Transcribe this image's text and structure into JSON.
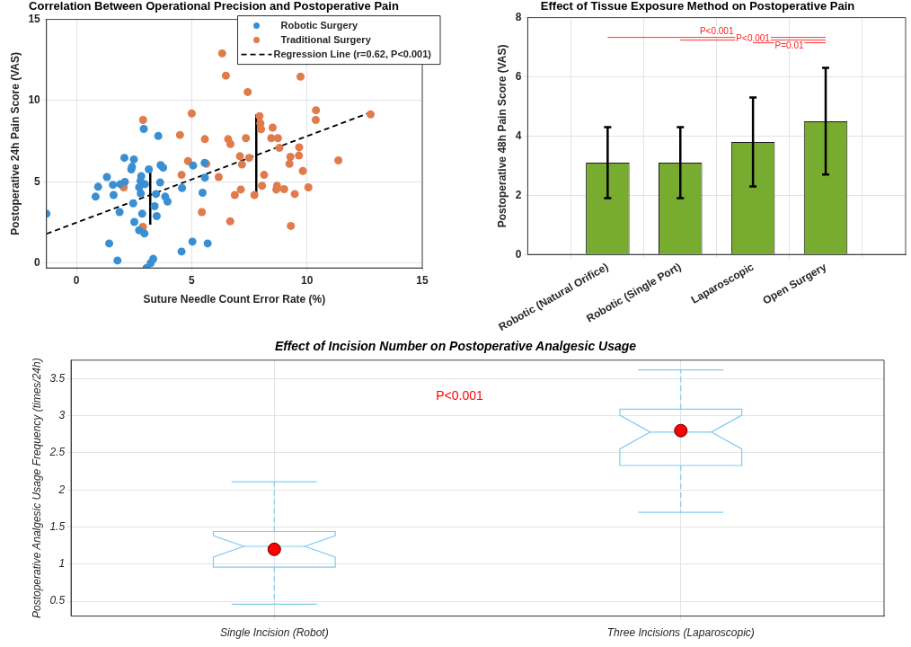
{
  "chart_data": [
    {
      "type": "scatter",
      "title": "Correlation Between Operational Precision and Postoperative Pain",
      "xlabel": "Suture Needle Count Error Rate (%)",
      "ylabel": "Postoperative 24h Pain Score (VAS)",
      "xlim": [
        -1.3,
        15
      ],
      "ylim": [
        -0.3,
        15
      ],
      "xticks": [
        0,
        5,
        10,
        15
      ],
      "yticks": [
        0,
        5,
        10,
        15
      ],
      "grid": true,
      "legend": "top right",
      "marker": "circle",
      "series": [
        {
          "name": "Robotic Surgery",
          "color": "#3a8fd2",
          "x": [
            -1.3,
            1.42,
            1.78,
            0.83,
            0.94,
            1.32,
            1.58,
            1.61,
            1.87,
            1.9,
            2.1,
            2.08,
            2.38,
            2.49,
            2.41,
            2.81,
            2.78,
            2.72,
            2.79,
            2.46,
            2.51,
            2.72,
            2.95,
            2.85,
            2.92,
            2.97,
            3.14,
            3.04,
            3.22,
            3.33,
            3.39,
            3.45,
            3.48,
            3.55,
            3.63,
            3.65,
            3.76,
            3.85,
            3.95,
            4.58,
            4.56,
            5.03,
            5.06,
            5.47,
            5.56,
            5.57,
            5.69
          ],
          "values": [
            3.04,
            1.21,
            0.16,
            4.09,
            4.7,
            5.3,
            4.82,
            4.19,
            3.14,
            4.86,
            5.0,
            6.48,
            5.77,
            6.38,
            5.93,
            5.36,
            5.06,
            4.66,
            4.29,
            3.68,
            2.53,
            2.02,
            1.82,
            3.04,
            8.26,
            4.86,
            5.77,
            -0.3,
            0.0,
            0.26,
            3.5,
            4.25,
            2.89,
            7.83,
            4.96,
            6.03,
            5.87,
            4.09,
            3.79,
            4.62,
            0.71,
            1.32,
            6.01,
            4.33,
            6.17,
            5.26,
            1.21
          ]
        },
        {
          "name": "Traditional Surgery",
          "color": "#e07b4c",
          "x": [
            2.05,
            2.89,
            2.88,
            4.49,
            4.56,
            4.84,
            5.0,
            5.44,
            5.57,
            5.63,
            6.17,
            6.32,
            6.48,
            6.58,
            6.68,
            6.67,
            6.87,
            7.09,
            7.13,
            7.18,
            7.35,
            7.43,
            7.49,
            7.72,
            7.94,
            7.98,
            8.01,
            8.14,
            8.05,
            8.51,
            8.45,
            8.74,
            8.8,
            8.7,
            8.67,
            9.01,
            9.24,
            9.28,
            9.47,
            9.3,
            9.65,
            9.66,
            9.72,
            9.82,
            10.06,
            10.38,
            10.39,
            11.36,
            12.76
          ],
          "values": [
            4.66,
            8.81,
            2.23,
            7.89,
            5.43,
            6.28,
            9.21,
            3.14,
            7.63,
            6.11,
            5.3,
            12.91,
            11.54,
            7.63,
            7.33,
            2.57,
            4.19,
            6.58,
            4.53,
            6.07,
            7.69,
            10.53,
            6.48,
            4.19,
            9.05,
            8.6,
            8.24,
            5.43,
            4.76,
            8.34,
            7.69,
            7.69,
            7.09,
            4.76,
            4.53,
            4.55,
            6.11,
            6.54,
            4.25,
            2.29,
            6.62,
            7.13,
            11.48,
            5.67,
            4.66,
            8.81,
            9.41,
            6.32,
            9.15
          ]
        },
        {
          "name": "Regression Line (r=0.62, P<0.001)",
          "type": "line",
          "color": "#000000",
          "line_style": "dashed",
          "marker": "none",
          "x": [
            -1.3,
            12.8
          ],
          "values": [
            1.8,
            9.3
          ]
        },
        {
          "type": "line",
          "color": "#000000",
          "marker": "none",
          "x": [
            3.2,
            3.2
          ],
          "values": [
            2.37,
            5.73
          ]
        },
        {
          "type": "line",
          "color": "#000000",
          "marker": "none",
          "x": [
            7.8,
            7.8
          ],
          "values": [
            4.31,
            9.15
          ]
        }
      ]
    },
    {
      "type": "bar",
      "title": "Effect of Tissue Exposure Method on Postoperative Pain",
      "ylabel": "Postoperative 48h Pain Score (VAS)",
      "categories": [
        "Robotic (Natural Orifice)",
        "Robotic (Single Port)",
        "Laparoscopic",
        "Open Surgery"
      ],
      "values": [
        3.1,
        3.1,
        3.8,
        4.5
      ],
      "errors": [
        1.2,
        1.2,
        1.5,
        1.8
      ],
      "color": "#77ac30",
      "ylim": [
        0,
        8
      ],
      "yticks": [
        0,
        2,
        4,
        6,
        8
      ],
      "grid": true,
      "annotations": [
        "P<0.001",
        "P<0.001",
        "P=0.01"
      ]
    },
    {
      "type": "box",
      "title": "Effect of Incision Number on Postoperative Analgesic Usage",
      "ylabel": "Postoperative Analgesic Usage Frequency (times/24h)",
      "categories": [
        "Single Incision (Robot)",
        "Three Incisions (Laparoscopic)"
      ],
      "color": "#80cdf0",
      "ylim": [
        0.3,
        3.75
      ],
      "yticks": [
        0.5,
        1,
        1.5,
        2,
        2.5,
        3,
        3.5
      ],
      "grid": true,
      "boxes": [
        {
          "low": 0.46,
          "q1": 0.96,
          "median": 1.24,
          "q3": 1.44,
          "high": 2.11,
          "mean": 1.2
        },
        {
          "low": 1.7,
          "q1": 2.33,
          "median": 2.78,
          "q3": 3.09,
          "high": 3.62,
          "mean": 2.8
        }
      ],
      "annotations": [
        "P<0.001"
      ]
    }
  ]
}
